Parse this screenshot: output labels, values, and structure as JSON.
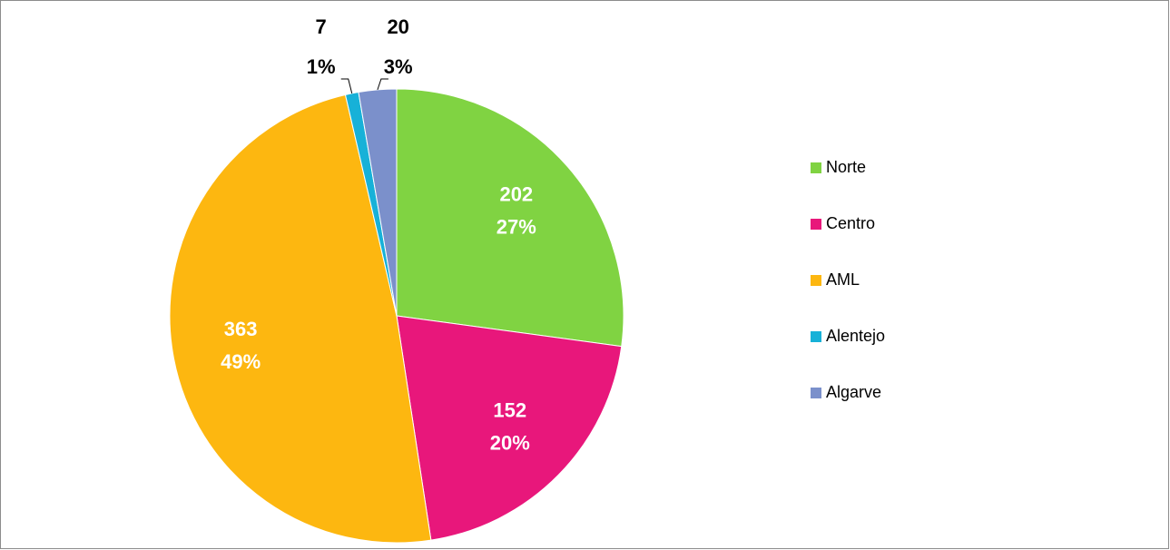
{
  "chart_data": {
    "type": "pie",
    "categories": [
      "Norte",
      "Centro",
      "AML",
      "Alentejo",
      "Algarve"
    ],
    "values": [
      202,
      152,
      363,
      7,
      20
    ],
    "percent_labels": [
      "27%",
      "20%",
      "49%",
      "1%",
      "3%"
    ],
    "colors": [
      "#80d342",
      "#e8177b",
      "#fdb710",
      "#17b1d8",
      "#7b90cb"
    ],
    "legend": "right"
  }
}
